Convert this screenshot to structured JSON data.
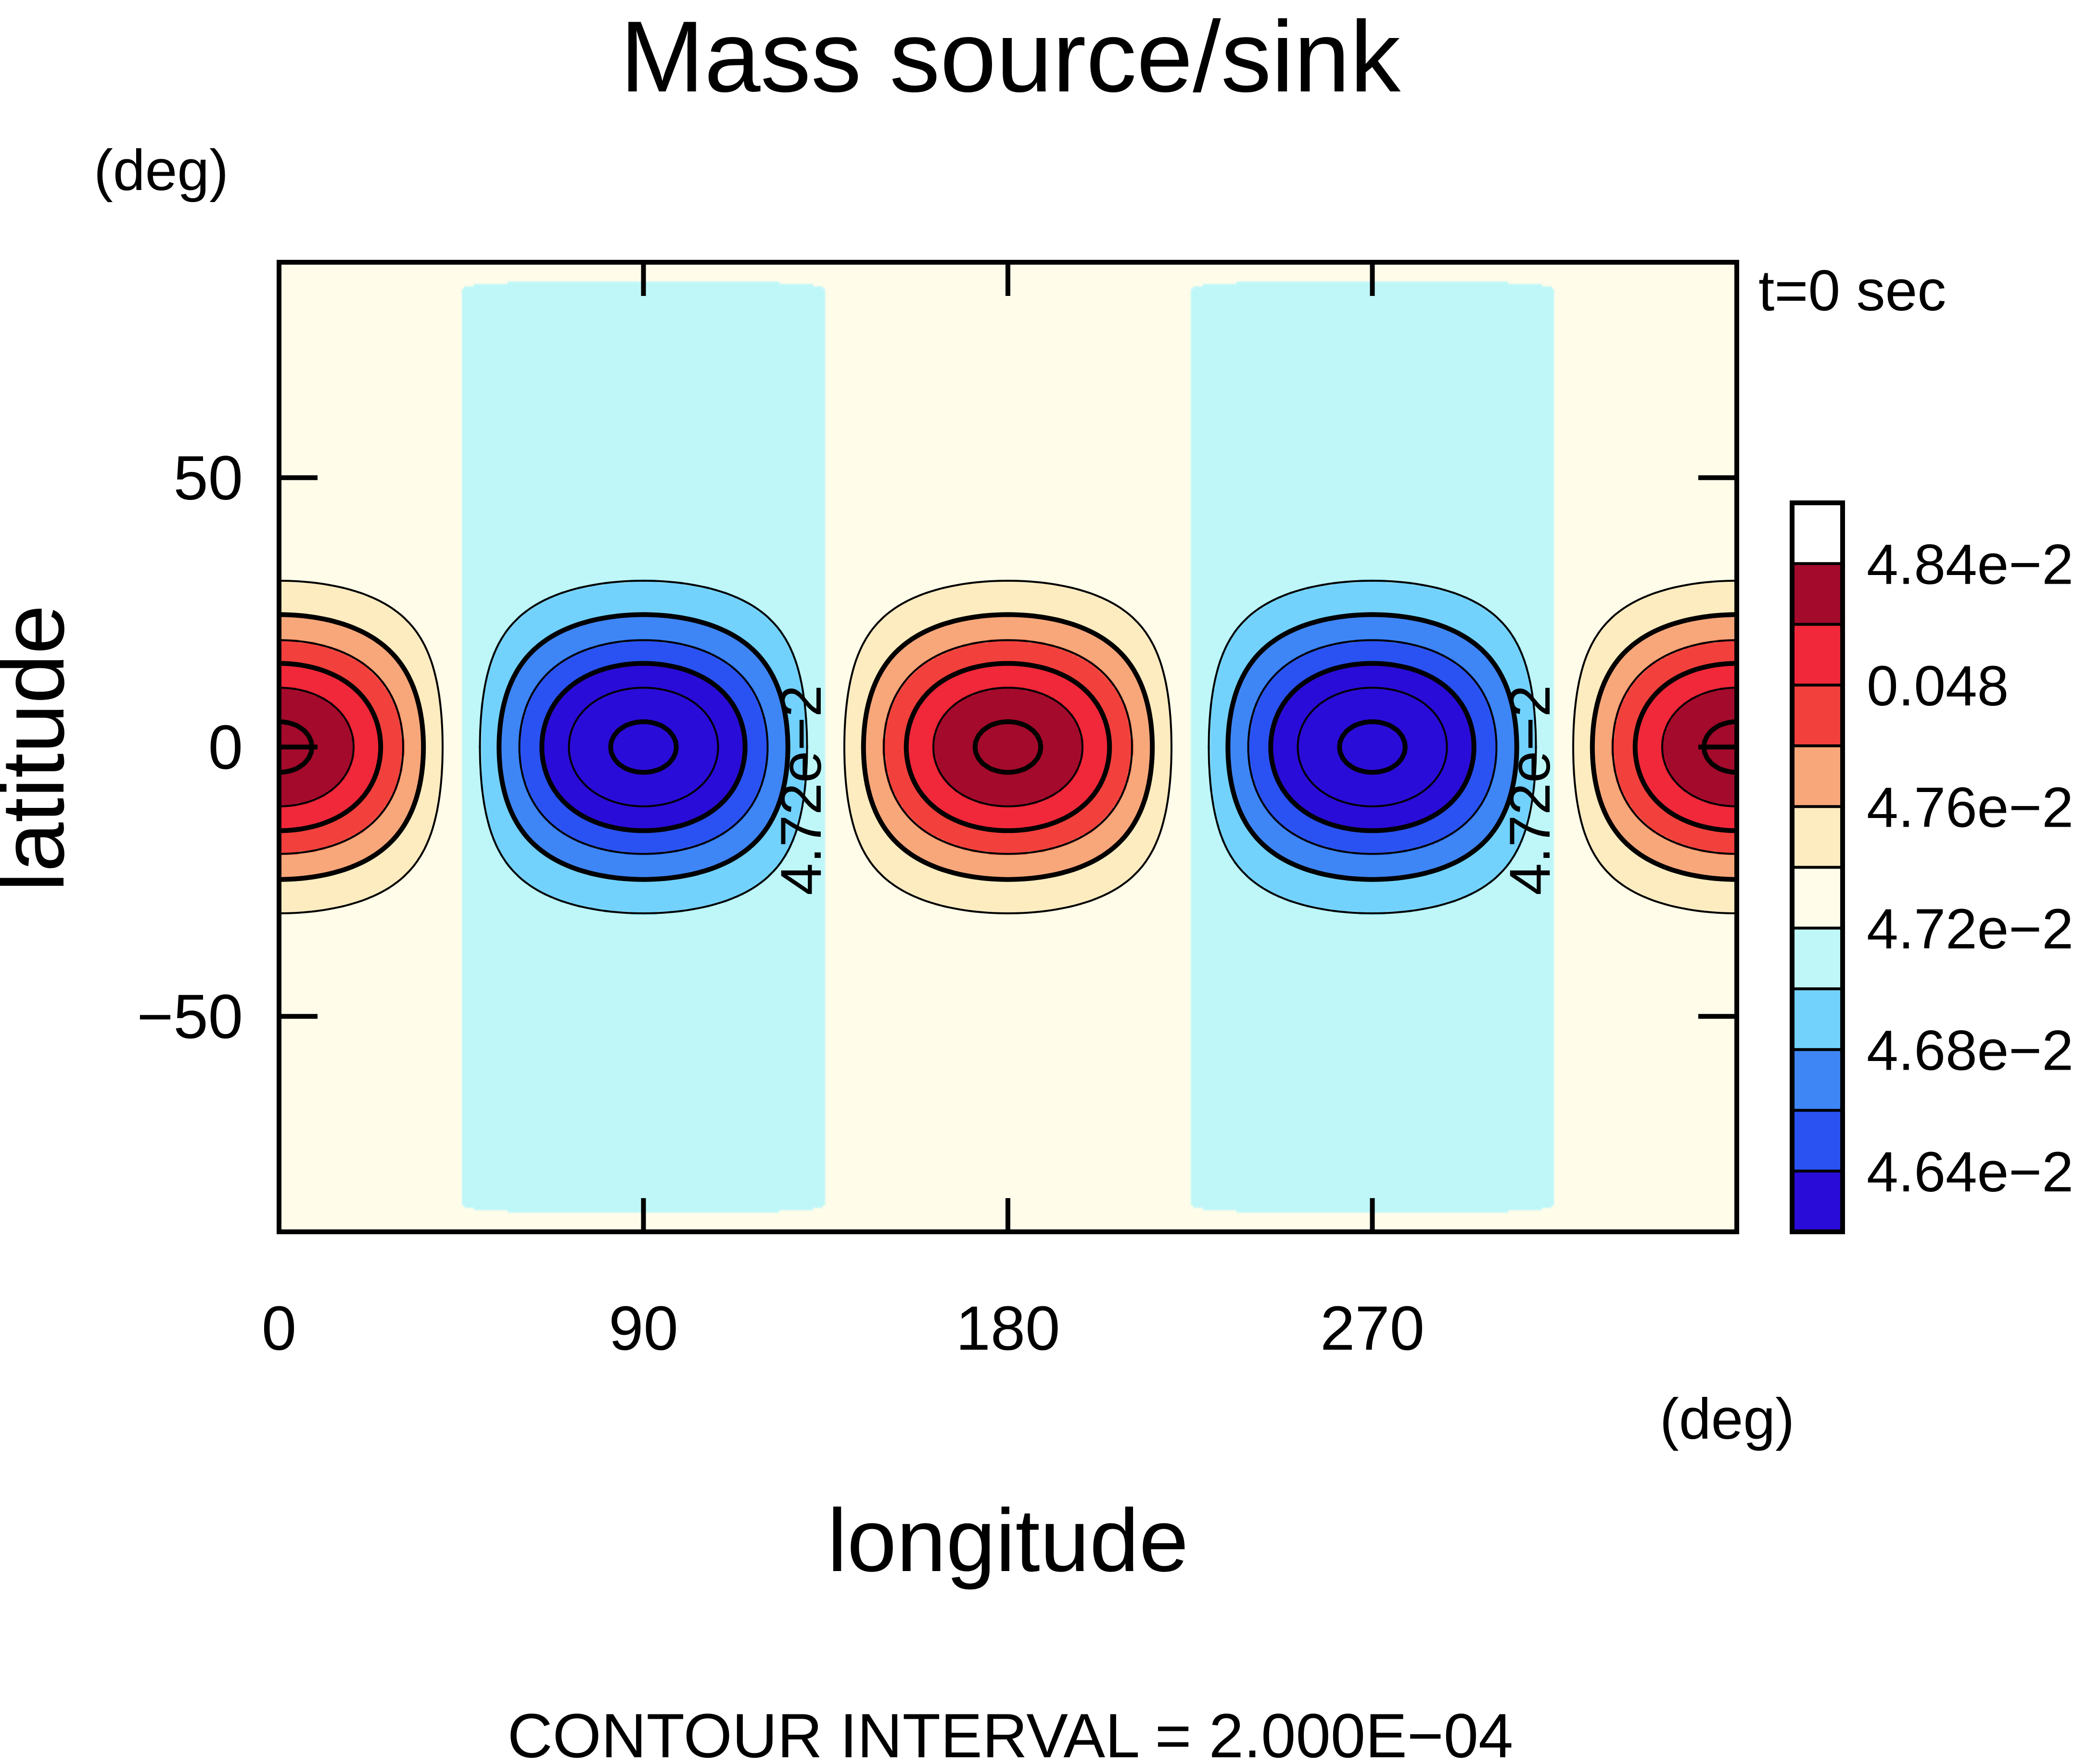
{
  "chart_data": {
    "type": "heatmap",
    "title": "Mass source/sink",
    "xlabel": "longitude",
    "ylabel": "latitude",
    "x_unit": "(deg)",
    "y_unit": "(deg)",
    "time_label": "t=0 sec",
    "footer": "CONTOUR INTERVAL = 2.000E−04",
    "xlim": [
      0,
      360
    ],
    "ylim": [
      -90,
      90
    ],
    "xticks": [
      {
        "value": 0,
        "label": "0"
      },
      {
        "value": 90,
        "label": "90"
      },
      {
        "value": 180,
        "label": "180"
      },
      {
        "value": 270,
        "label": "270"
      }
    ],
    "yticks": [
      {
        "value": 50,
        "label": "50"
      },
      {
        "value": 0,
        "label": "0"
      },
      {
        "value": -50,
        "label": "−50"
      }
    ],
    "field": {
      "base": 0.0472,
      "amplitude": 0.00125,
      "zonal_wavenumber": 2,
      "lon_max_deg": [
        0,
        180,
        360
      ],
      "lon_min_deg": [
        90,
        270
      ]
    },
    "contour_interval": 0.0002,
    "contour_labels": [
      {
        "lon": 130,
        "lat": -8,
        "text": "4.72e−2"
      },
      {
        "lon": 310,
        "lat": -8,
        "text": "4.72e−2"
      }
    ],
    "colorbar": {
      "levels": [
        0.0462,
        0.0464,
        0.0466,
        0.0468,
        0.047,
        0.0472,
        0.0474,
        0.0476,
        0.0478,
        0.048,
        0.0482,
        0.0484,
        0.0486
      ],
      "colors": [
        "#2a0cd8",
        "#2a52f2",
        "#3e86f6",
        "#72d2fc",
        "#bff7f9",
        "#fffdea",
        "#fdecc0",
        "#f8a77a",
        "#f2403c",
        "#f1273a",
        "#a40a2b"
      ],
      "tick_labels": [
        {
          "value": 0.0484,
          "label": "4.84e−2"
        },
        {
          "value": 0.048,
          "label": "0.048"
        },
        {
          "value": 0.0476,
          "label": "4.76e−2"
        },
        {
          "value": 0.0472,
          "label": "4.72e−2"
        },
        {
          "value": 0.0468,
          "label": "4.68e−2"
        },
        {
          "value": 0.0464,
          "label": "4.64e−2"
        }
      ]
    }
  }
}
